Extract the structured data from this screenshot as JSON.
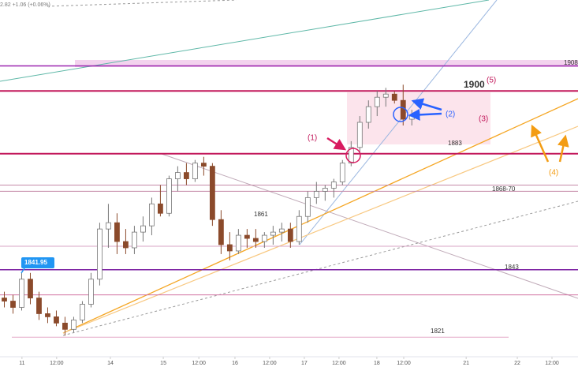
{
  "chart_data": {
    "type": "candlestick",
    "header": "2.82  +1.06 (+0.06%)",
    "xlim": [
      0,
      200
    ],
    "ylim": [
      1812,
      1929
    ],
    "xticks": [
      {
        "value": 7.6,
        "label": "11"
      },
      {
        "value": 19.6,
        "label": "12:00"
      },
      {
        "value": 38.2,
        "label": "14"
      },
      {
        "value": 56.5,
        "label": "15"
      },
      {
        "value": 68.8,
        "label": "12:00"
      },
      {
        "value": 81.3,
        "label": "16"
      },
      {
        "value": 93.3,
        "label": "12:00"
      },
      {
        "value": 105.3,
        "label": "17"
      },
      {
        "value": 117.3,
        "label": "12:00"
      },
      {
        "value": 130.4,
        "label": "18"
      },
      {
        "value": 139.7,
        "label": "12:00"
      },
      {
        "value": 161.3,
        "label": "21"
      },
      {
        "value": 179,
        "label": "22"
      },
      {
        "value": 191,
        "label": "12:00"
      }
    ],
    "up_color": "#ffffff",
    "down_color": "#8b4a2b",
    "x": [
      1.5,
      4.5,
      7.5,
      10.5,
      13.5,
      16.5,
      19.5,
      22.5,
      25.5,
      28.5,
      31.5,
      34.5,
      37.5,
      40.5,
      43.5,
      46.5,
      49.5,
      52.5,
      55.5,
      58.5,
      61.5,
      64.5,
      67.5,
      70.5,
      73.5,
      76.5,
      79.5,
      82.5,
      85.5,
      88.5,
      91.5,
      94.5,
      97.5,
      100.5,
      103.5,
      106.5,
      109.5,
      112.5,
      115.5,
      118.5,
      121.5,
      124.5,
      127.5,
      130.5,
      133.5,
      136.5,
      139.5,
      142.5
    ],
    "open": [
      1834,
      1833,
      1831,
      1840,
      1834,
      1829,
      1828,
      1826,
      1824,
      1827,
      1832,
      1840,
      1856,
      1858,
      1852,
      1850,
      1855,
      1857,
      1864,
      1861,
      1872,
      1874,
      1872,
      1877,
      1876,
      1859,
      1851,
      1849,
      1854,
      1853,
      1852,
      1854,
      1855,
      1856,
      1852,
      1860,
      1866,
      1868,
      1869,
      1871,
      1877,
      1882,
      1890,
      1895,
      1898,
      1899,
      1897,
      1891
    ],
    "high": [
      1836,
      1835,
      1842,
      1842,
      1836,
      1831,
      1830,
      1828,
      1828,
      1833,
      1842,
      1858,
      1864,
      1861,
      1856,
      1857,
      1860,
      1866,
      1870,
      1873,
      1876,
      1877,
      1878,
      1879,
      1877,
      1862,
      1855,
      1856,
      1856,
      1856,
      1855,
      1857,
      1858,
      1858,
      1862,
      1868,
      1871,
      1870,
      1872,
      1878,
      1884,
      1892,
      1897,
      1900,
      1901,
      1900,
      1902,
      1894
    ],
    "low": [
      1831,
      1829,
      1830,
      1832,
      1827,
      1826,
      1825,
      1822,
      1823,
      1826,
      1831,
      1838,
      1850,
      1848,
      1848,
      1848,
      1852,
      1854,
      1860,
      1860,
      1868,
      1870,
      1871,
      1873,
      1857,
      1848,
      1846,
      1848,
      1850,
      1850,
      1850,
      1851,
      1852,
      1850,
      1851,
      1858,
      1864,
      1865,
      1866,
      1870,
      1876,
      1880,
      1888,
      1892,
      1895,
      1896,
      1889,
      1889
    ],
    "close": [
      1833,
      1831,
      1840,
      1834,
      1829,
      1828,
      1826,
      1824,
      1827,
      1832,
      1840,
      1856,
      1858,
      1852,
      1850,
      1855,
      1857,
      1864,
      1861,
      1872,
      1874,
      1872,
      1877,
      1876,
      1859,
      1851,
      1849,
      1854,
      1853,
      1852,
      1854,
      1855,
      1856,
      1852,
      1860,
      1866,
      1868,
      1869,
      1871,
      1877,
      1882,
      1890,
      1895,
      1898,
      1899,
      1897,
      1891,
      1892
    ],
    "levels": [
      {
        "value": 1908,
        "color": "#9c27b0"
      },
      {
        "value": 1900,
        "color": "#c2185b"
      },
      {
        "value": 1880,
        "color": "#c2185b"
      },
      {
        "value": 1870,
        "color": "#c48aa8"
      },
      {
        "value": 1868,
        "color": "#c48aa8"
      },
      {
        "value": 1850.5,
        "color": "#d9a6c6"
      },
      {
        "value": 1843,
        "color": "#7b1fa2"
      },
      {
        "value": 1835,
        "color": "#d070a0"
      },
      {
        "value": 1821.5,
        "color": "#e6aac8"
      }
    ],
    "annotations": [
      {
        "text": "1908",
        "color": "#333333"
      },
      {
        "text": "1900",
        "color": "#333333"
      },
      {
        "text": "(5)",
        "color": "#c2185b"
      },
      {
        "text": "1883",
        "color": "#333333"
      },
      {
        "text": "1868-70",
        "color": "#333333"
      },
      {
        "text": "1861",
        "color": "#333333"
      },
      {
        "text": "1843",
        "color": "#333333"
      },
      {
        "text": "1821",
        "color": "#333333"
      },
      {
        "text": "(1)",
        "color": "#c2185b"
      },
      {
        "text": "(2)",
        "color": "#2962ff"
      },
      {
        "text": "(3)",
        "color": "#c2185b"
      },
      {
        "text": "(4)",
        "color": "#f39c12"
      },
      {
        "text": "1841.95",
        "color": "#ffffff"
      }
    ]
  }
}
